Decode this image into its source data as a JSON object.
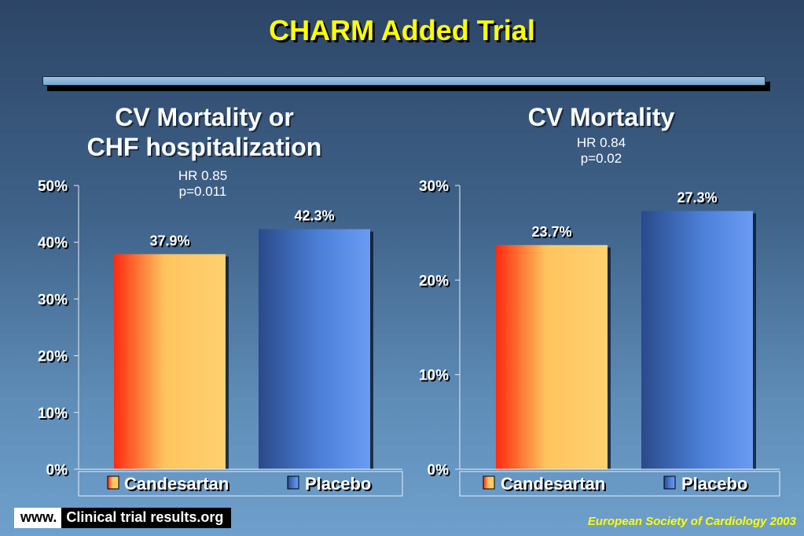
{
  "title": "CHARM Added Trial",
  "left_panel": {
    "title_line1": "CV Mortality or",
    "title_line2": "CHF hospitalization",
    "hr": "HR 0.85",
    "p": "p=0.011"
  },
  "right_panel": {
    "title": "CV Mortality",
    "hr": "HR 0.84",
    "p": "p=0.02"
  },
  "colors": {
    "candesartan": "#f58a3a",
    "placebo": "#3d6fc4",
    "title": "#ffff00"
  },
  "chart_data": [
    {
      "type": "bar",
      "title": "CV Mortality or CHF hospitalization",
      "categories": [
        "Candesartan",
        "Placebo"
      ],
      "values": [
        37.9,
        42.3
      ],
      "data_labels": [
        "37.9%",
        "42.3%"
      ],
      "ylim": [
        0,
        50
      ],
      "yticks": [
        "0%",
        "10%",
        "20%",
        "30%",
        "40%",
        "50%"
      ],
      "legend": [
        "Candesartan",
        "Placebo"
      ],
      "legend_position": "bottom"
    },
    {
      "type": "bar",
      "title": "CV Mortality",
      "categories": [
        "Candesartan",
        "Placebo"
      ],
      "values": [
        23.7,
        27.3
      ],
      "data_labels": [
        "23.7%",
        "27.3%"
      ],
      "ylim": [
        0,
        30
      ],
      "yticks": [
        "0%",
        "10%",
        "20%",
        "30%"
      ],
      "legend": [
        "Candesartan",
        "Placebo"
      ],
      "legend_position": "bottom"
    }
  ],
  "footer": {
    "www": "www.",
    "site": "Clinical trial results.org",
    "credit": "European Society of Cardiology 2003"
  }
}
